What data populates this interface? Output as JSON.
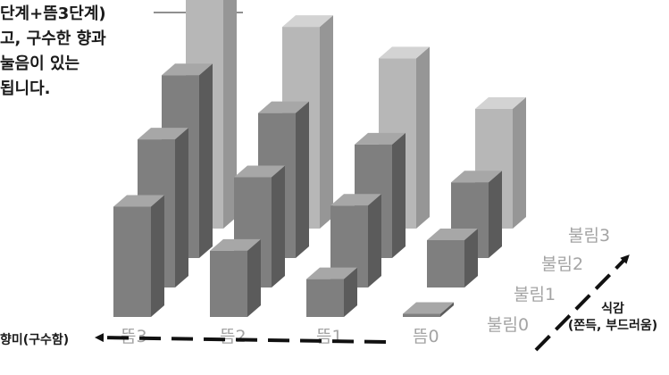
{
  "annotation": {
    "lines": [
      "단계+뜸3단계)",
      "고, 구수한 향과",
      "눌음이 있는",
      "됩니다."
    ]
  },
  "chart_data": {
    "type": "bar3d",
    "x_axis": {
      "label": "향미(구수함)",
      "categories": [
        "뜸3",
        "뜸2",
        "뜸1",
        "뜸0"
      ]
    },
    "y_axis": {
      "label_lines": [
        "식감",
        "(쫀득, 부드러움)"
      ],
      "categories": [
        "불림0",
        "불림1",
        "불림2",
        "불림3"
      ]
    },
    "values": [
      [
        3.5,
        2.1,
        1.2,
        0.1
      ],
      [
        4.7,
        3.5,
        2.6,
        1.5
      ],
      [
        5.8,
        4.6,
        3.6,
        2.4
      ],
      [
        7.3,
        6.4,
        5.4,
        3.8
      ]
    ],
    "highlight_row": "불림3",
    "colors": {
      "bar_front": "#7f7f7f",
      "bar_side": "#5b5b5b",
      "bar_top": "#a7a7a7",
      "highlight_front": "#b7b7b7",
      "highlight_side": "#969696",
      "highlight_top": "#d3d3d3",
      "tick": "#a4a4a4"
    }
  }
}
